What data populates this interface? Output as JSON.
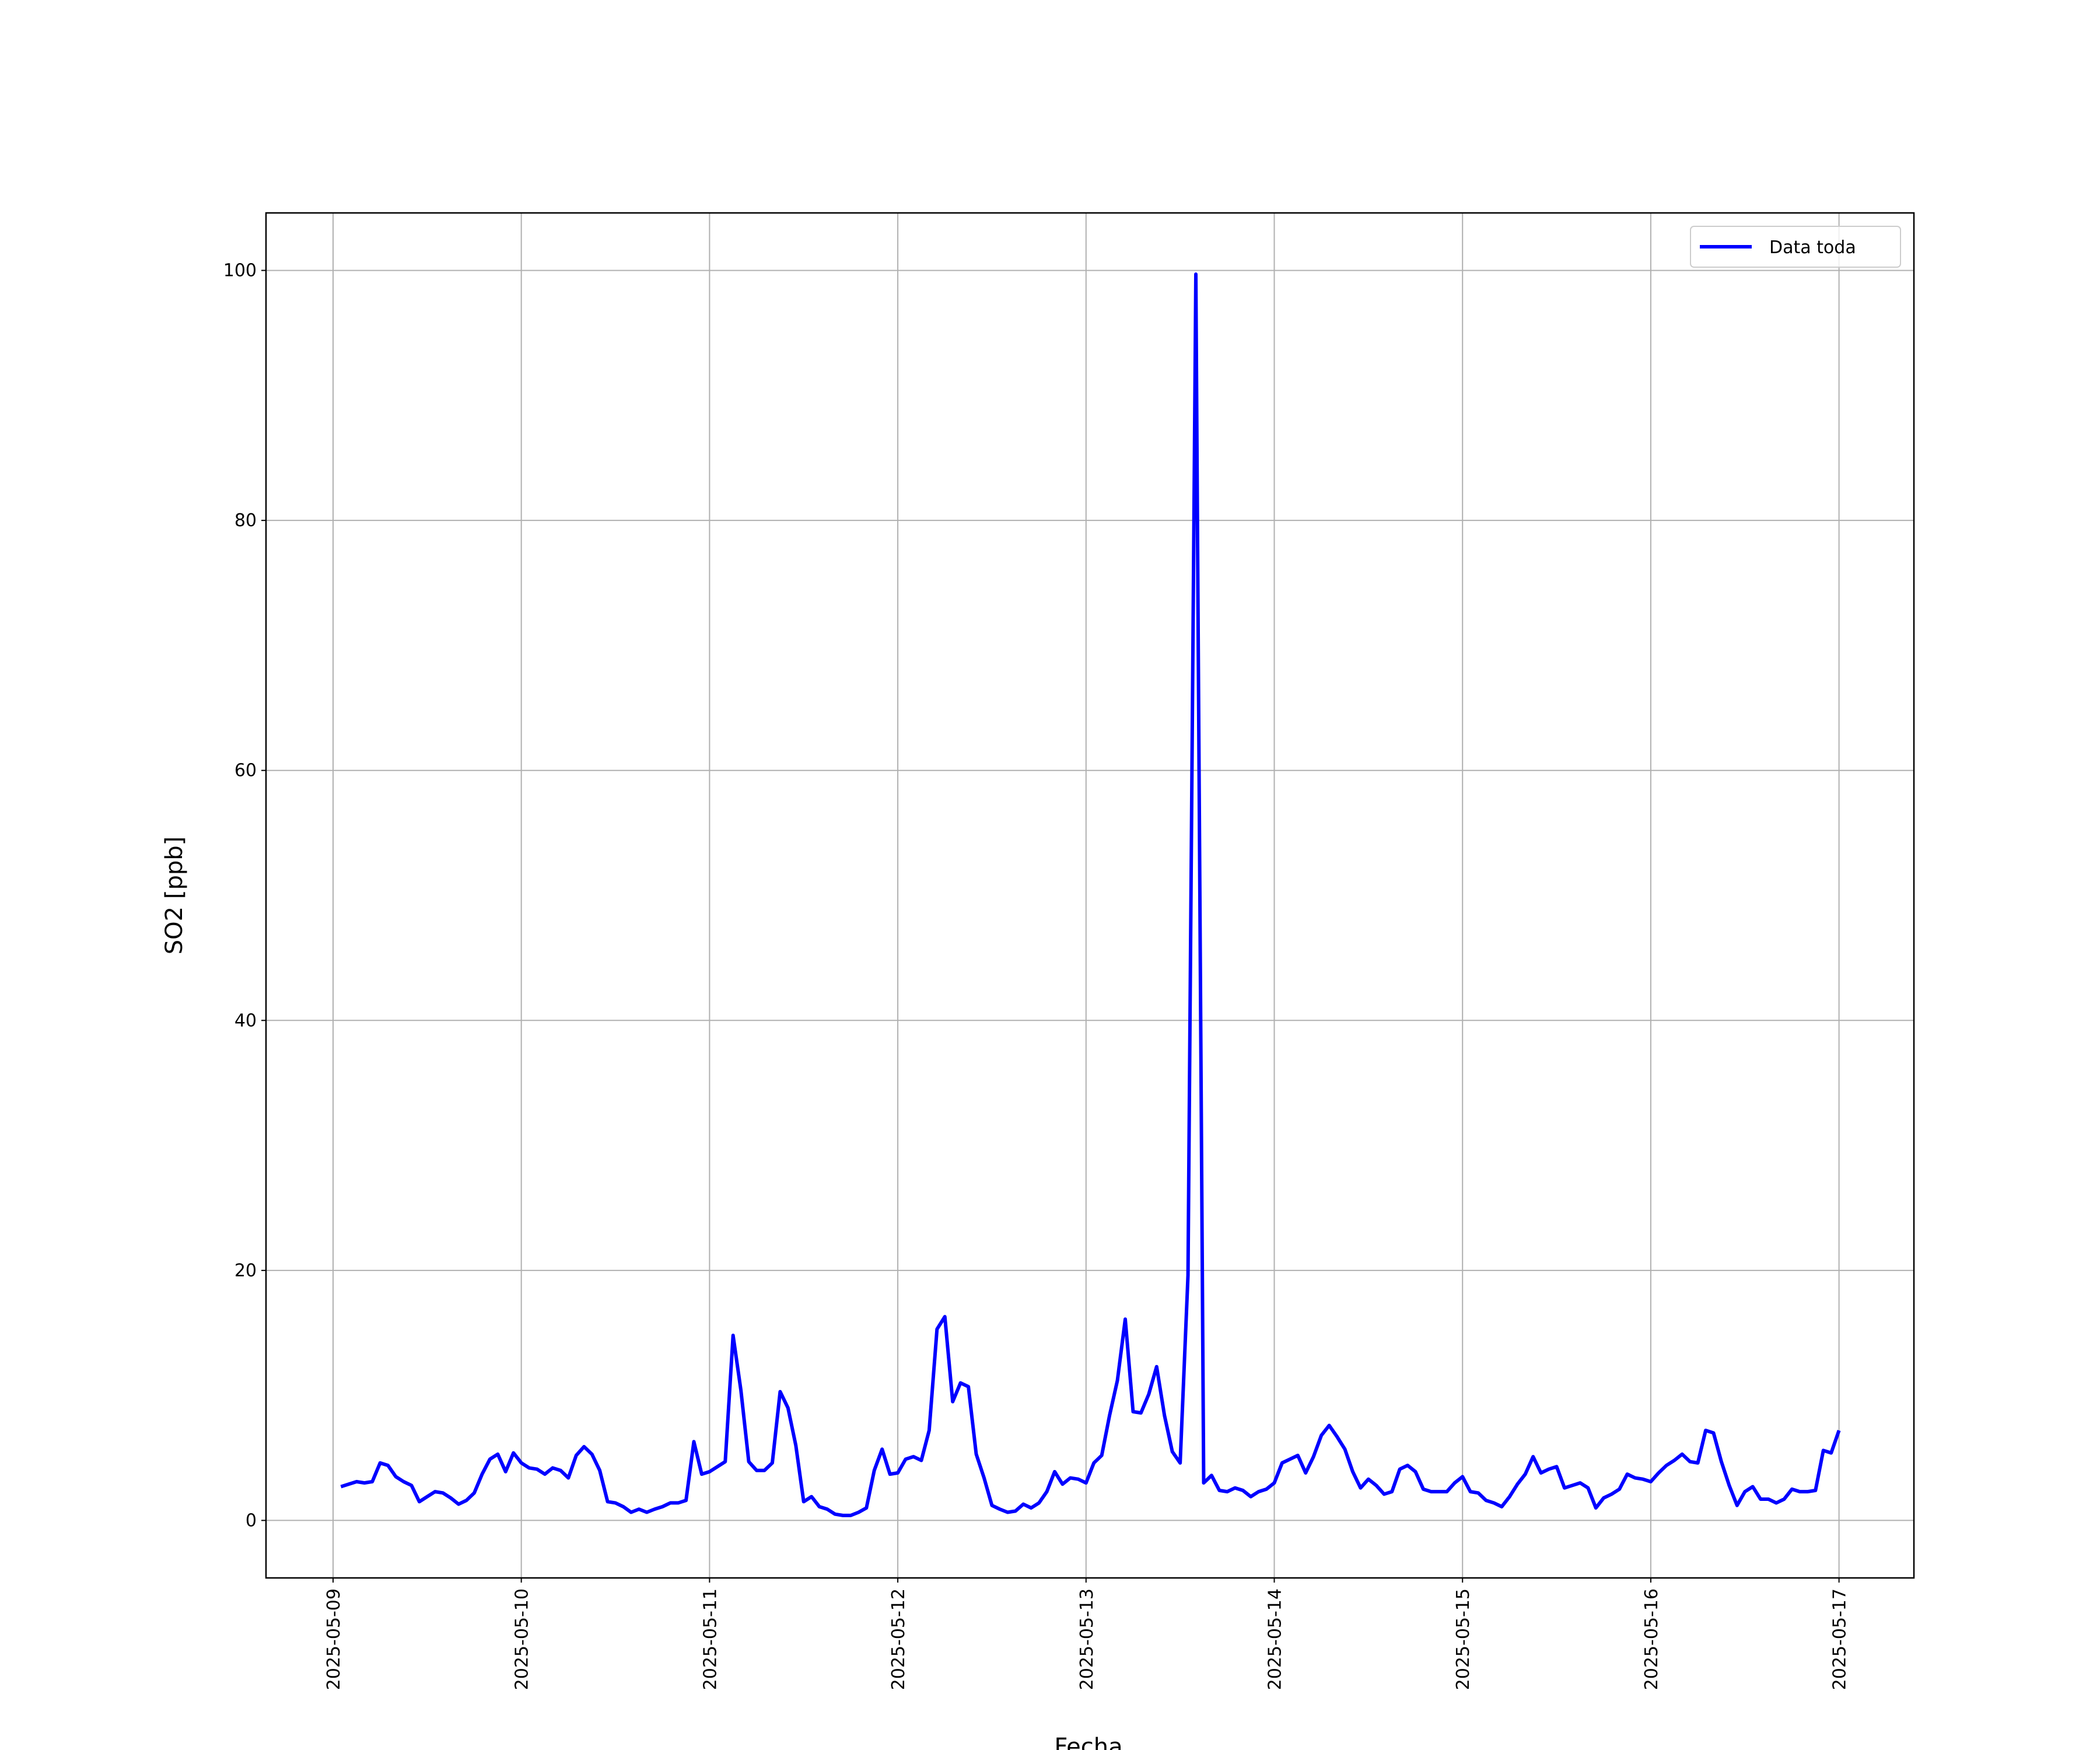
{
  "chart_data": {
    "type": "line",
    "xlabel": "Fecha",
    "ylabel": "SO2 [ppb]",
    "x": [
      "2025-05-09 01:00",
      "2025-05-09 02:00",
      "2025-05-09 03:00",
      "2025-05-09 04:00",
      "2025-05-09 05:00",
      "2025-05-09 06:00",
      "2025-05-09 07:00",
      "2025-05-09 08:00",
      "2025-05-09 09:00",
      "2025-05-09 10:00",
      "2025-05-09 11:00",
      "2025-05-09 12:00",
      "2025-05-09 13:00",
      "2025-05-09 14:00",
      "2025-05-09 15:00",
      "2025-05-09 16:00",
      "2025-05-09 17:00",
      "2025-05-09 18:00",
      "2025-05-09 19:00",
      "2025-05-09 20:00",
      "2025-05-09 21:00",
      "2025-05-09 22:00",
      "2025-05-09 23:00",
      "2025-05-10 00:00",
      "2025-05-10 01:00",
      "2025-05-10 02:00",
      "2025-05-10 03:00",
      "2025-05-10 04:00",
      "2025-05-10 05:00",
      "2025-05-10 06:00",
      "2025-05-10 07:00",
      "2025-05-10 08:00",
      "2025-05-10 09:00",
      "2025-05-10 10:00",
      "2025-05-10 11:00",
      "2025-05-10 12:00",
      "2025-05-10 13:00",
      "2025-05-10 14:00",
      "2025-05-10 15:00",
      "2025-05-10 16:00",
      "2025-05-10 17:00",
      "2025-05-10 18:00",
      "2025-05-10 19:00",
      "2025-05-10 20:00",
      "2025-05-10 21:00",
      "2025-05-10 22:00",
      "2025-05-10 23:00",
      "2025-05-11 00:00",
      "2025-05-11 01:00",
      "2025-05-11 02:00",
      "2025-05-11 03:00",
      "2025-05-11 04:00",
      "2025-05-11 05:00",
      "2025-05-11 06:00",
      "2025-05-11 07:00",
      "2025-05-11 08:00",
      "2025-05-11 09:00",
      "2025-05-11 10:00",
      "2025-05-11 11:00",
      "2025-05-11 12:00",
      "2025-05-11 13:00",
      "2025-05-11 14:00",
      "2025-05-11 15:00",
      "2025-05-11 16:00",
      "2025-05-11 17:00",
      "2025-05-11 18:00",
      "2025-05-11 19:00",
      "2025-05-11 20:00",
      "2025-05-11 21:00",
      "2025-05-11 22:00",
      "2025-05-11 23:00",
      "2025-05-12 00:00",
      "2025-05-12 01:00",
      "2025-05-12 02:00",
      "2025-05-12 03:00",
      "2025-05-12 04:00",
      "2025-05-12 05:00",
      "2025-05-12 06:00",
      "2025-05-12 07:00",
      "2025-05-12 08:00",
      "2025-05-12 09:00",
      "2025-05-12 10:00",
      "2025-05-12 11:00",
      "2025-05-12 12:00",
      "2025-05-12 13:00",
      "2025-05-12 14:00",
      "2025-05-12 15:00",
      "2025-05-12 16:00",
      "2025-05-12 17:00",
      "2025-05-12 18:00",
      "2025-05-12 19:00",
      "2025-05-12 20:00",
      "2025-05-12 21:00",
      "2025-05-12 22:00",
      "2025-05-12 23:00",
      "2025-05-13 00:00",
      "2025-05-13 01:00",
      "2025-05-13 02:00",
      "2025-05-13 03:00",
      "2025-05-13 04:00",
      "2025-05-13 05:00",
      "2025-05-13 06:00",
      "2025-05-13 07:00",
      "2025-05-13 08:00",
      "2025-05-13 09:00",
      "2025-05-13 10:00",
      "2025-05-13 11:00",
      "2025-05-13 12:00",
      "2025-05-13 13:00",
      "2025-05-13 14:00",
      "2025-05-13 15:00",
      "2025-05-13 16:00",
      "2025-05-13 17:00",
      "2025-05-13 18:00",
      "2025-05-13 19:00",
      "2025-05-13 20:00",
      "2025-05-13 21:00",
      "2025-05-13 22:00",
      "2025-05-13 23:00",
      "2025-05-14 00:00",
      "2025-05-14 01:00",
      "2025-05-14 02:00",
      "2025-05-14 03:00",
      "2025-05-14 04:00",
      "2025-05-14 05:00",
      "2025-05-14 06:00",
      "2025-05-14 07:00",
      "2025-05-14 08:00",
      "2025-05-14 09:00",
      "2025-05-14 10:00",
      "2025-05-14 11:00",
      "2025-05-14 12:00",
      "2025-05-14 13:00",
      "2025-05-14 14:00",
      "2025-05-14 15:00",
      "2025-05-14 16:00",
      "2025-05-14 17:00",
      "2025-05-14 18:00",
      "2025-05-14 19:00",
      "2025-05-14 20:00",
      "2025-05-14 21:00",
      "2025-05-14 22:00",
      "2025-05-14 23:00",
      "2025-05-15 00:00",
      "2025-05-15 01:00",
      "2025-05-15 02:00",
      "2025-05-15 03:00",
      "2025-05-15 04:00",
      "2025-05-15 05:00",
      "2025-05-15 06:00",
      "2025-05-15 07:00",
      "2025-05-15 08:00",
      "2025-05-15 09:00",
      "2025-05-15 10:00",
      "2025-05-15 11:00",
      "2025-05-15 12:00",
      "2025-05-15 13:00",
      "2025-05-15 14:00",
      "2025-05-15 15:00",
      "2025-05-15 16:00",
      "2025-05-15 17:00",
      "2025-05-15 18:00",
      "2025-05-15 19:00",
      "2025-05-15 20:00",
      "2025-05-15 21:00",
      "2025-05-15 22:00",
      "2025-05-15 23:00",
      "2025-05-16 00:00",
      "2025-05-16 01:00",
      "2025-05-16 02:00",
      "2025-05-16 03:00",
      "2025-05-16 04:00",
      "2025-05-16 05:00",
      "2025-05-16 06:00",
      "2025-05-16 07:00",
      "2025-05-16 08:00",
      "2025-05-16 09:00",
      "2025-05-16 10:00",
      "2025-05-16 11:00",
      "2025-05-16 12:00",
      "2025-05-16 13:00",
      "2025-05-16 14:00",
      "2025-05-16 15:00",
      "2025-05-16 16:00",
      "2025-05-16 17:00",
      "2025-05-16 18:00",
      "2025-05-16 19:00",
      "2025-05-16 20:00",
      "2025-05-16 21:00",
      "2025-05-16 22:00",
      "2025-05-16 23:00",
      "2025-05-17 00:00"
    ],
    "series": [
      {
        "name": "Data toda",
        "color": "#0000ff",
        "values": [
          2.7,
          2.9,
          3.1,
          3.0,
          3.1,
          4.6,
          4.4,
          3.5,
          3.1,
          2.8,
          1.5,
          1.9,
          2.3,
          2.2,
          1.8,
          1.3,
          1.6,
          2.2,
          3.7,
          4.9,
          5.3,
          3.9,
          5.4,
          4.6,
          4.2,
          4.1,
          3.7,
          4.2,
          4.0,
          3.4,
          5.2,
          5.9,
          5.3,
          4.0,
          1.5,
          1.4,
          1.1,
          0.65,
          0.9,
          0.65,
          0.9,
          1.1,
          1.4,
          1.4,
          1.6,
          6.3,
          3.7,
          3.9,
          4.3,
          4.7,
          14.8,
          10.4,
          4.7,
          4.0,
          4.0,
          4.6,
          10.3,
          9.0,
          6.0,
          1.5,
          1.9,
          1.1,
          0.9,
          0.5,
          0.4,
          0.4,
          0.65,
          1.0,
          4.0,
          5.7,
          3.7,
          3.8,
          4.9,
          5.1,
          4.8,
          7.2,
          15.3,
          16.3,
          9.5,
          11.0,
          10.7,
          5.3,
          3.4,
          1.2,
          0.9,
          0.65,
          0.75,
          1.3,
          1.0,
          1.4,
          2.3,
          3.9,
          2.9,
          3.4,
          3.3,
          3.0,
          4.6,
          5.2,
          8.4,
          11.2,
          16.1,
          8.7,
          8.6,
          10.1,
          12.3,
          8.4,
          5.5,
          4.6,
          19.6,
          99.7,
          3.0,
          3.6,
          2.4,
          2.3,
          2.6,
          2.4,
          1.9,
          2.3,
          2.5,
          3.0,
          4.6,
          4.9,
          5.2,
          3.8,
          5.1,
          6.8,
          7.6,
          6.7,
          5.7,
          3.9,
          2.6,
          3.3,
          2.8,
          2.1,
          2.3,
          4.1,
          4.4,
          3.9,
          2.5,
          2.3,
          2.3,
          2.3,
          3.0,
          3.5,
          2.3,
          2.2,
          1.6,
          1.4,
          1.1,
          1.9,
          2.9,
          3.7,
          5.1,
          3.8,
          4.1,
          4.3,
          2.6,
          2.8,
          3.0,
          2.6,
          1.0,
          1.8,
          2.1,
          2.5,
          3.7,
          3.4,
          3.3,
          3.1,
          3.8,
          4.4,
          4.8,
          5.3,
          4.7,
          4.6,
          7.2,
          7.0,
          4.7,
          2.8,
          1.2,
          2.3,
          2.7,
          1.7,
          1.7,
          1.4,
          1.7,
          2.5,
          2.3,
          2.3,
          2.4,
          5.6,
          5.4,
          7.2
        ]
      }
    ],
    "xlim": [
      "2025-05-08 15:27",
      "2025-05-17 09:33"
    ],
    "xticks": [
      "2025-05-09",
      "2025-05-10",
      "2025-05-11",
      "2025-05-12",
      "2025-05-13",
      "2025-05-14",
      "2025-05-15",
      "2025-05-16",
      "2025-05-17"
    ],
    "ylim": [
      -4.6,
      104.6
    ],
    "yticks": [
      0,
      20,
      40,
      60,
      80,
      100
    ],
    "grid": true,
    "legend": "upper right"
  }
}
